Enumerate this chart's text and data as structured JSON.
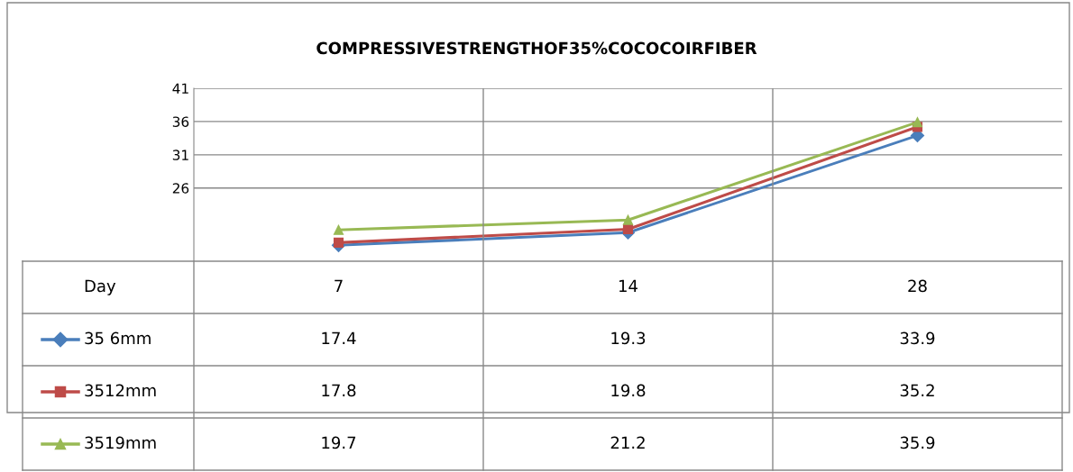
{
  "chart_data": {
    "type": "line",
    "title": "COMPRESSIVESTRENGTHOF35%COCOCOIRFIBER",
    "xlabel": "Day",
    "categories": [
      "7",
      "14",
      "28"
    ],
    "series": [
      {
        "name": "35 6mm",
        "color": "#4a7ebb",
        "marker": "diamond",
        "values": [
          17.4,
          19.3,
          33.9
        ]
      },
      {
        "name": "3512mm",
        "color": "#be4b48",
        "marker": "square",
        "values": [
          17.8,
          19.8,
          35.2
        ]
      },
      {
        "name": "3519mm",
        "color": "#98b954",
        "marker": "triangle",
        "values": [
          19.7,
          21.2,
          35.9
        ]
      }
    ],
    "ylim": [
      15,
      41
    ],
    "yticks": [
      26,
      31,
      36,
      41
    ],
    "grid": "y",
    "line_style": "solid",
    "data_labels": true,
    "legend": "left"
  }
}
